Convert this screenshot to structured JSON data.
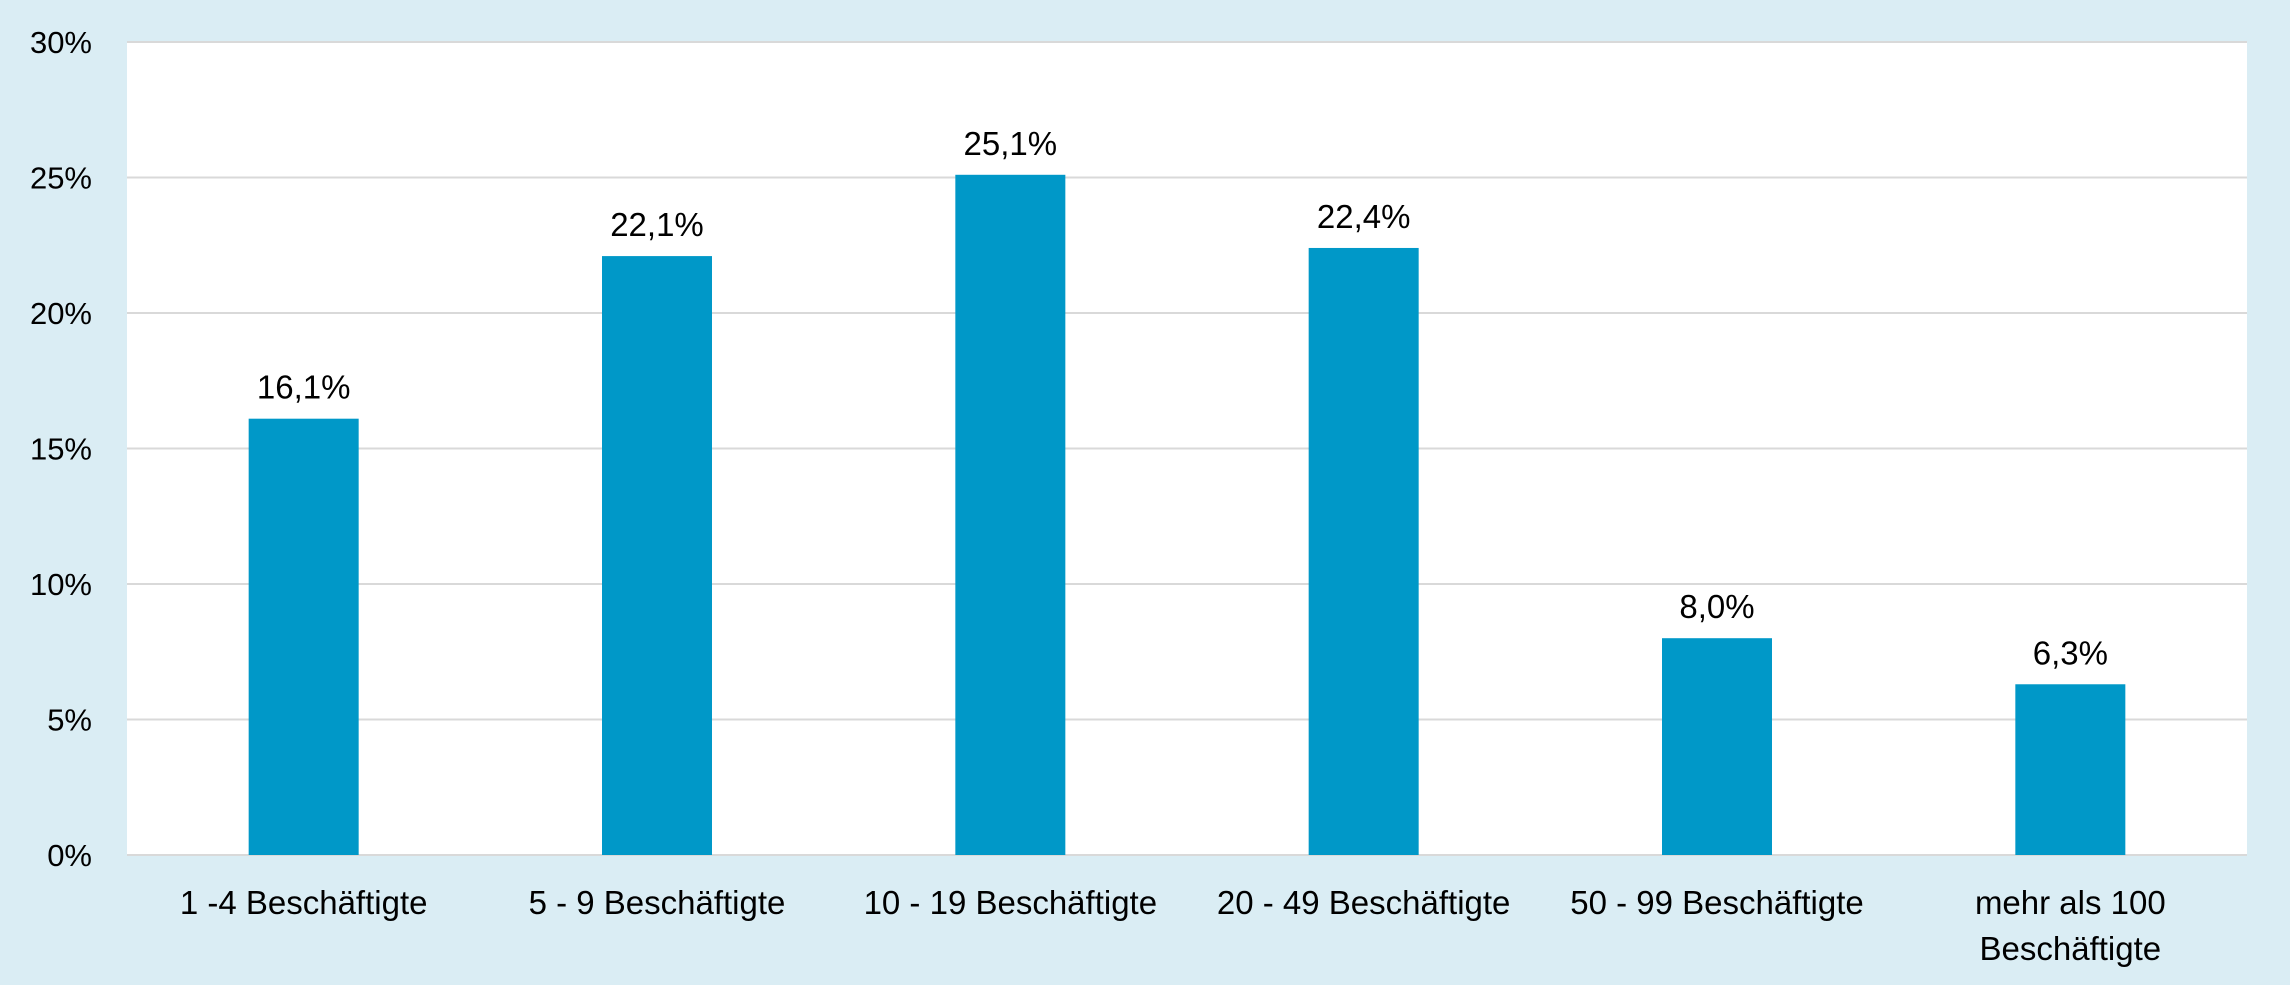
{
  "chart_data": {
    "type": "bar",
    "title": "",
    "xlabel": "",
    "ylabel": "",
    "categories": [
      [
        "1 -4 Beschäftigte"
      ],
      [
        "5 - 9 Beschäftigte"
      ],
      [
        "10 - 19 Beschäftigte"
      ],
      [
        "20 - 49 Beschäftigte"
      ],
      [
        "50 - 99 Beschäftigte"
      ],
      [
        "mehr als 100",
        "Beschäftigte"
      ]
    ],
    "values": [
      16.1,
      22.1,
      25.1,
      22.4,
      8.0,
      6.3
    ],
    "data_labels": [
      "16,1%",
      "22,1%",
      "25,1%",
      "22,4%",
      "8,0%",
      "6,3%"
    ],
    "ylim": [
      0,
      30
    ],
    "yticks": [
      0,
      5,
      10,
      15,
      20,
      25,
      30
    ],
    "ytick_labels": [
      "0%",
      "5%",
      "10%",
      "15%",
      "20%",
      "25%",
      "30%"
    ],
    "grid": true,
    "legend": "none",
    "colors": {
      "bar": "#0098c8",
      "background": "#daedf4",
      "plot_area": "#ffffff",
      "gridline": "#d9d9d9"
    }
  }
}
